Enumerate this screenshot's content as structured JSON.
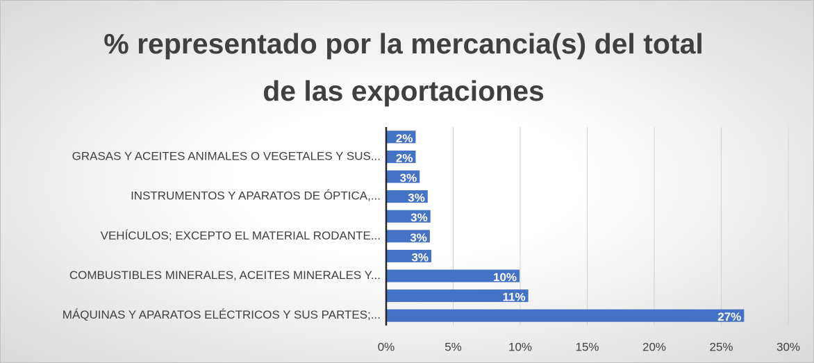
{
  "chart_data": {
    "type": "barh",
    "title": "% representado por la mercancia(s) del total de las exportaciones",
    "categories": [
      "MÁQUINAS Y APARATOS ELÉCTRICOS Y SUS PARTES;...",
      null,
      "COMBUSTIBLES MINERALES, ACEITES MINERALES Y...",
      null,
      "VEHÍCULOS; EXCEPTO EL MATERIAL RODANTE...",
      null,
      "INSTRUMENTOS Y APARATOS DE ÓPTICA,...",
      null,
      "GRASAS Y ACEITES ANIMALES O VEGETALES Y SUS...",
      null
    ],
    "values": [
      26.7,
      10.6,
      9.95,
      3.37,
      3.26,
      3.3,
      3.1,
      2.5,
      2.2,
      2.2
    ],
    "value_labels": [
      "27%",
      "11%",
      "10%",
      "3%",
      "3%",
      "3%",
      "3%",
      "3%",
      "2%",
      "2%"
    ],
    "color": "#4472c4",
    "xlim": [
      0,
      30
    ],
    "xticks": [
      {
        "value": 0,
        "label": "0%"
      },
      {
        "value": 5,
        "label": "5%"
      },
      {
        "value": 10,
        "label": "10%"
      },
      {
        "value": 15,
        "label": "15%"
      },
      {
        "value": 20,
        "label": "20%"
      },
      {
        "value": 25,
        "label": "25%"
      },
      {
        "value": 30,
        "label": "30%"
      }
    ],
    "grid": true
  }
}
